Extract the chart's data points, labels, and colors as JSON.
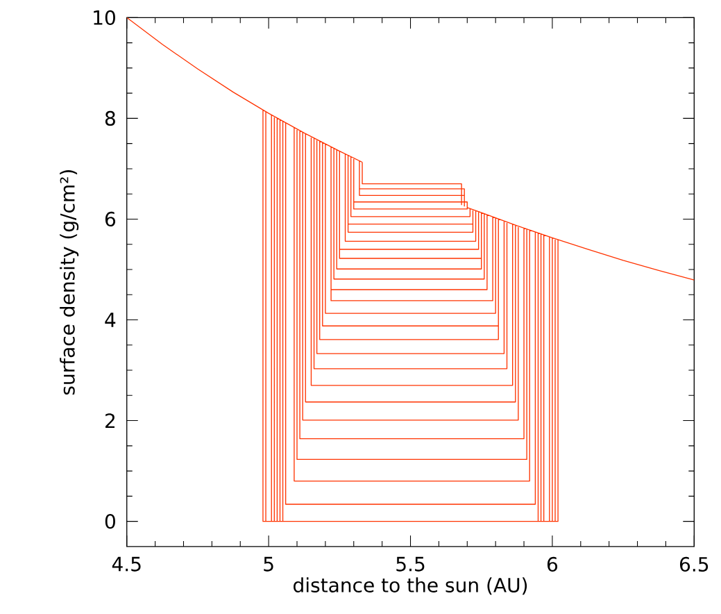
{
  "chart_data": {
    "type": "line",
    "xlabel": "distance to the sun (AU)",
    "ylabel": "surface density (g/cm²)",
    "xlim": [
      4.5,
      6.5
    ],
    "ylim": [
      -0.5,
      10
    ],
    "xticks": [
      4.5,
      5,
      5.5,
      6,
      6.5
    ],
    "yticks": [
      0,
      2,
      4,
      6,
      8,
      10
    ],
    "marker": "none",
    "series": [
      {
        "color": "#ff3300",
        "x": [
          4.5,
          4.625,
          4.75,
          4.875,
          5.0,
          5.125,
          5.25,
          5.33,
          null,
          5.7,
          5.75,
          5.875,
          6.0,
          6.125,
          6.25,
          6.375,
          6.5,
          null,
          5.33,
          5.33,
          5.68,
          5.68,
          null,
          5.32,
          5.32,
          5.69,
          5.69,
          null,
          5.32,
          5.32,
          5.69,
          5.69,
          null,
          5.3,
          5.3,
          5.7,
          5.7,
          null,
          5.3,
          5.3,
          5.7,
          5.7,
          null,
          5.29,
          5.29,
          5.71,
          5.71,
          null,
          5.28,
          5.28,
          5.72,
          5.72,
          null,
          5.28,
          5.28,
          5.72,
          5.72,
          null,
          5.27,
          5.27,
          5.73,
          5.73,
          null,
          5.25,
          5.25,
          5.74,
          5.74,
          null,
          5.25,
          5.25,
          5.75,
          5.75,
          null,
          5.24,
          5.24,
          5.75,
          5.75,
          null,
          5.23,
          5.23,
          5.76,
          5.76,
          null,
          5.22,
          5.22,
          5.77,
          5.77,
          null,
          5.22,
          5.22,
          5.79,
          5.79,
          null,
          5.2,
          5.2,
          5.8,
          5.8,
          null,
          5.19,
          5.19,
          5.81,
          5.81,
          null,
          5.18,
          5.18,
          5.81,
          5.81,
          null,
          5.17,
          5.17,
          5.83,
          5.83,
          null,
          5.16,
          5.16,
          5.84,
          5.84,
          null,
          5.15,
          5.15,
          5.86,
          5.86,
          null,
          5.13,
          5.13,
          5.87,
          5.87,
          null,
          5.12,
          5.12,
          5.88,
          5.88,
          null,
          5.11,
          5.11,
          5.9,
          5.9,
          null,
          5.1,
          5.1,
          5.91,
          5.91,
          null,
          5.09,
          5.09,
          5.92,
          5.92,
          null,
          5.06,
          5.06,
          5.94,
          5.94,
          null,
          5.05,
          5.05,
          5.95,
          5.95,
          null,
          5.04,
          5.04,
          5.96,
          5.96,
          null,
          5.03,
          5.03,
          5.97,
          5.97,
          null,
          5.02,
          5.02,
          5.99,
          5.99,
          null,
          5.01,
          5.01,
          6.0,
          6.0,
          null,
          4.99,
          4.99,
          6.01,
          6.01,
          null,
          4.98,
          4.98,
          6.02,
          6.02
        ],
        "values": [
          10.0,
          9.47,
          8.98,
          8.52,
          8.1,
          7.71,
          7.35,
          7.13,
          null,
          6.23,
          6.13,
          5.87,
          5.63,
          5.4,
          5.18,
          4.98,
          4.79,
          null,
          7.13,
          6.7,
          6.7,
          6.28,
          null,
          7.16,
          6.6,
          6.6,
          6.25,
          null,
          7.16,
          6.47,
          6.47,
          6.25,
          null,
          7.21,
          6.34,
          6.34,
          6.23,
          null,
          7.21,
          6.2,
          6.2,
          6.23,
          null,
          7.24,
          6.05,
          6.05,
          6.21,
          null,
          7.26,
          5.9,
          5.9,
          6.19,
          null,
          7.26,
          5.74,
          5.74,
          6.19,
          null,
          7.29,
          5.56,
          5.56,
          6.17,
          null,
          7.35,
          5.4,
          5.4,
          6.15,
          null,
          7.35,
          5.22,
          5.22,
          6.13,
          null,
          7.37,
          5.01,
          5.01,
          6.13,
          null,
          7.4,
          4.81,
          4.81,
          6.1,
          null,
          7.43,
          4.6,
          4.6,
          6.08,
          null,
          7.43,
          4.38,
          4.38,
          6.04,
          null,
          7.49,
          4.13,
          4.13,
          6.02,
          null,
          7.52,
          3.88,
          3.88,
          6.0,
          null,
          7.55,
          3.61,
          3.61,
          6.0,
          null,
          7.58,
          3.33,
          3.33,
          5.96,
          null,
          7.6,
          3.03,
          3.03,
          5.94,
          null,
          7.64,
          2.7,
          2.7,
          5.9,
          null,
          7.69,
          2.37,
          2.37,
          5.88,
          null,
          7.73,
          2.01,
          2.01,
          5.86,
          null,
          7.76,
          1.64,
          1.64,
          5.82,
          null,
          7.79,
          1.23,
          1.23,
          5.8,
          null,
          7.82,
          0.8,
          0.8,
          5.78,
          null,
          7.91,
          0.34,
          0.34,
          5.74,
          null,
          7.94,
          0,
          0,
          5.72,
          null,
          7.97,
          0,
          0,
          5.7,
          null,
          8.0,
          0,
          0,
          5.68,
          null,
          8.04,
          0,
          0,
          5.64,
          null,
          8.07,
          0,
          0,
          5.63,
          null,
          8.13,
          0,
          0,
          5.61,
          null,
          8.17,
          0,
          0,
          5.59
        ]
      }
    ]
  }
}
